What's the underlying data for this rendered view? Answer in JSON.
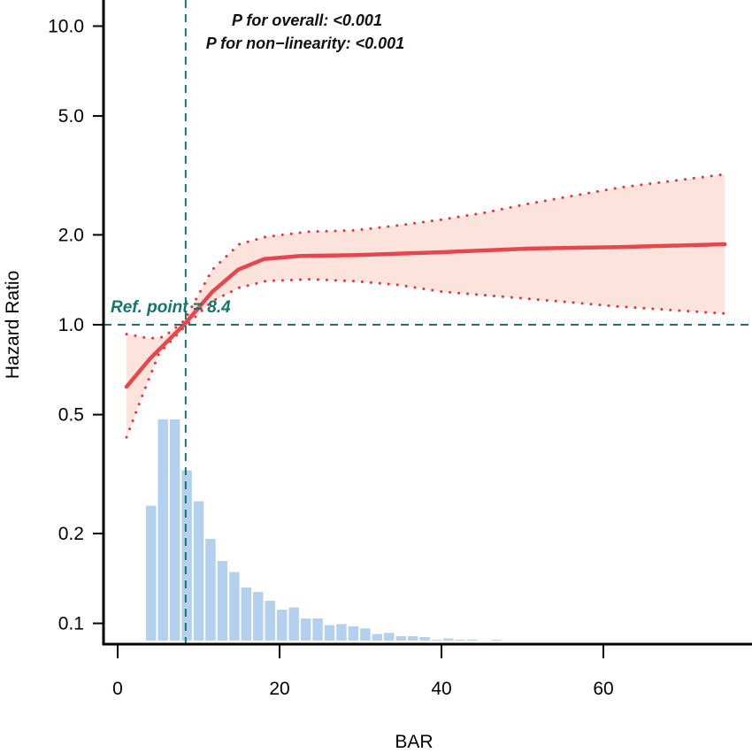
{
  "chart_data": {
    "type": "line",
    "title": "",
    "xlabel": "BAR",
    "ylabel": "Hazard Ratio",
    "xlim": [
      -1.7,
      78.4
    ],
    "ylim": [
      0.085,
      11.5
    ],
    "yscale": "log",
    "x_ticks": [
      0,
      20,
      40,
      60
    ],
    "x_tick_labels": [
      "0",
      "20",
      "40",
      "60"
    ],
    "y_ticks": [
      0.1,
      0.2,
      0.5,
      1.0,
      2.0,
      5.0,
      10.0
    ],
    "y_tick_labels": [
      "0.1",
      "0.2",
      "0.5",
      "1.0",
      "2.0",
      "5.0",
      "10.0"
    ],
    "grid": false,
    "annotations": {
      "p_overall": "P for overall: <0.001",
      "p_nonlinearity": "P for non−linearity: <0.001",
      "ref_point_label": "Ref. point = 8.4"
    },
    "ref_point": {
      "x": 8.4,
      "y": 1.0
    },
    "series": [
      {
        "name": "Hazard Ratio",
        "x": [
          1.1,
          4.0,
          8.2,
          11.7,
          14.9,
          18.1,
          22.6,
          29.2,
          40.1,
          51.0,
          62.0,
          75.0
        ],
        "y": [
          0.62,
          0.77,
          1.0,
          1.29,
          1.53,
          1.66,
          1.7,
          1.71,
          1.75,
          1.8,
          1.82,
          1.86
        ]
      },
      {
        "name": "Upper 95% CI",
        "x": [
          1.1,
          4.0,
          5.7,
          8.2,
          11.7,
          15.0,
          18.3,
          23.7,
          29.2,
          34.6,
          40.1,
          45.6,
          51.0,
          62.0,
          75.0
        ],
        "y": [
          0.93,
          0.9,
          0.91,
          1.03,
          1.53,
          1.86,
          1.97,
          2.05,
          2.07,
          2.15,
          2.25,
          2.38,
          2.55,
          2.88,
          3.19
        ]
      },
      {
        "name": "Lower 95% CI",
        "x": [
          1.1,
          2.95,
          5.1,
          8.2,
          11.7,
          15.0,
          18.3,
          23.7,
          29.2,
          34.6,
          40.1,
          51.0,
          62.0,
          75.0
        ],
        "y": [
          0.42,
          0.57,
          0.8,
          0.98,
          1.2,
          1.33,
          1.4,
          1.42,
          1.4,
          1.36,
          1.29,
          1.22,
          1.15,
          1.09
        ]
      }
    ],
    "histogram": {
      "bin_start": 3.5,
      "bin_width": 1.47,
      "relative_frequency_percent": [
        61,
        100,
        100,
        77,
        63,
        46,
        36,
        31,
        24,
        22,
        18,
        14,
        15,
        10,
        10,
        7,
        7.5,
        6.5,
        5.5,
        3,
        3.5,
        2,
        2,
        1.6,
        0.4,
        1,
        0.4,
        0.5,
        0,
        0.4
      ]
    },
    "colors": {
      "curve": "#e5474f",
      "ci_fill": "#fce4dc",
      "ci_dots": "#e5303a",
      "histogram": "#b3d1ef",
      "reference": "#12786f"
    }
  }
}
